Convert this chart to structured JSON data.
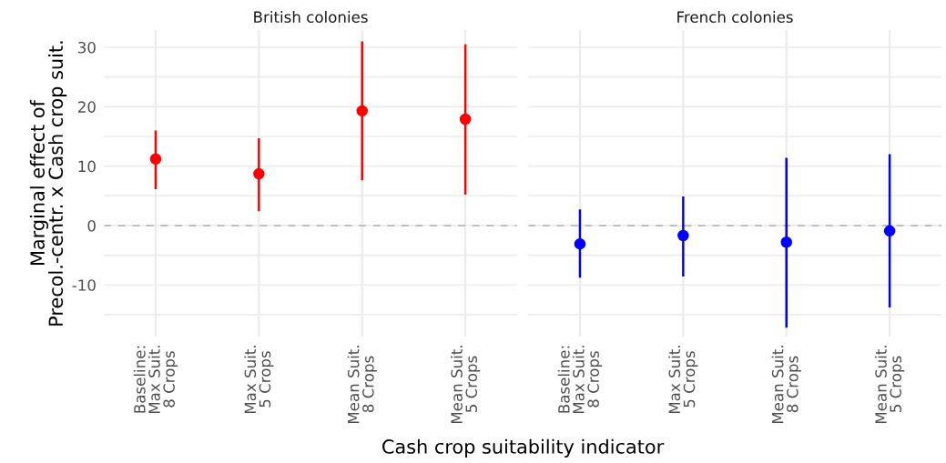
{
  "chart_data": [
    {
      "type": "scatter",
      "title": "British colonies",
      "ylabel": "Marginal effect of\nPrecol.-centr. x Cash crop suit.",
      "xlabel": "Cash crop suitability indicator",
      "categories": [
        "Baseline:\nMax Suit.\n8 Crops",
        "Max Suit.\n5 Crops",
        "Mean Suit.\n8 Crops",
        "Mean Suit.\n5 Crops"
      ],
      "series": [
        {
          "color": "#ff0000",
          "values": [
            11.2,
            8.7,
            19.3,
            17.9
          ],
          "errors": [
            [
              6.3,
              15.8
            ],
            [
              2.6,
              14.5
            ],
            [
              7.8,
              30.8
            ],
            [
              5.4,
              30.3
            ]
          ]
        }
      ],
      "ylim": [
        -18.7,
        32.9
      ],
      "yticks": [
        {
          "value": -15,
          "label": null
        },
        -10,
        {
          "value": -5,
          "label": null
        },
        0,
        {
          "value": 5,
          "label": null
        },
        10,
        {
          "value": 15,
          "label": null
        },
        20,
        {
          "value": 25,
          "label": null
        },
        30
      ],
      "ref_lines": [
        {
          "axis": "y",
          "value": 0,
          "color": "#bebebe",
          "line_style": "dashed"
        }
      ],
      "grid": true,
      "marker": "circle"
    },
    {
      "type": "scatter",
      "title": "French colonies",
      "categories": [
        "Baseline:\nMax Suit.\n8 Crops",
        "Max Suit.\n5 Crops",
        "Mean Suit.\n8 Crops",
        "Mean Suit.\n5 Crops"
      ],
      "series": [
        {
          "color": "#0000ff",
          "values": [
            -3.1,
            -1.7,
            -2.8,
            -0.9
          ],
          "errors": [
            [
              -8.6,
              2.5
            ],
            [
              -8.4,
              4.7
            ],
            [
              -17.0,
              11.2
            ],
            [
              -13.6,
              11.8
            ]
          ]
        }
      ],
      "ylim": [
        -18.7,
        32.9
      ],
      "yticks": [
        {
          "value": -15,
          "label": null
        },
        -10,
        {
          "value": -5,
          "label": null
        },
        0,
        {
          "value": 5,
          "label": null
        },
        10,
        {
          "value": 15,
          "label": null
        },
        20,
        {
          "value": 25,
          "label": null
        },
        30
      ],
      "ref_lines": [
        {
          "axis": "y",
          "value": 0,
          "color": "#bebebe",
          "line_style": "dashed"
        }
      ],
      "grid": true,
      "marker": "circle",
      "tick_labels": "x"
    }
  ]
}
